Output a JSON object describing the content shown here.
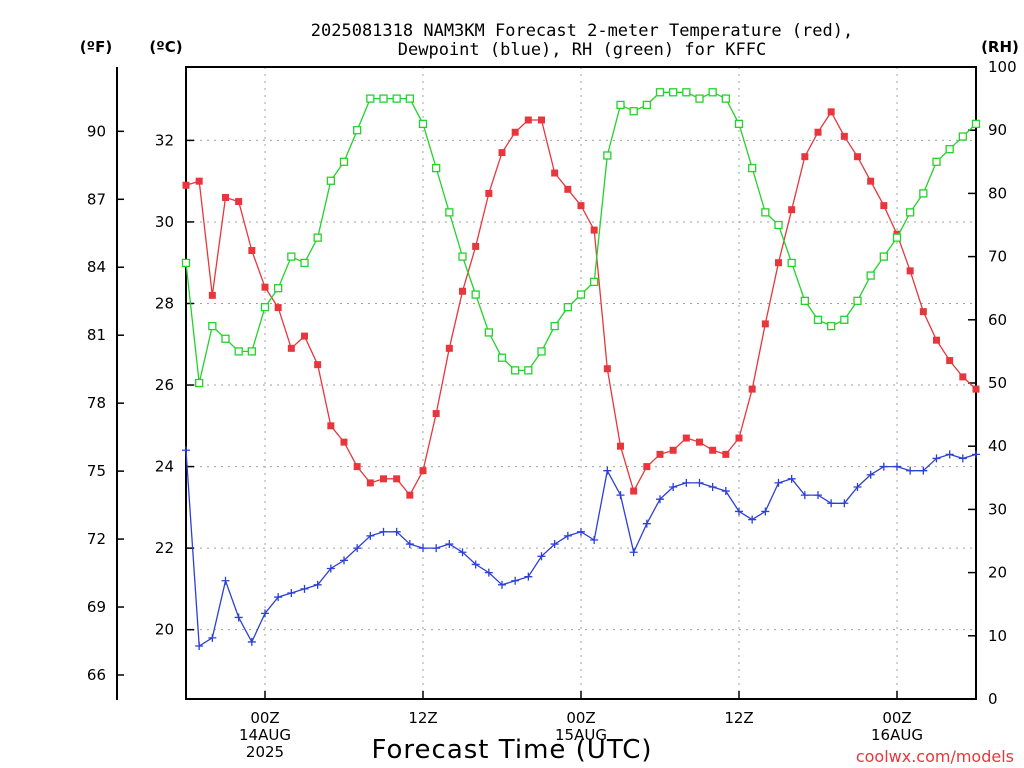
{
  "chart_data": {
    "type": "line",
    "title_line1": "2025081318 NAM3KM Forecast 2-meter Temperature (red),",
    "title_line2": "Dewpoint (blue), RH (green) for KFFC",
    "xlabel": "Forecast Time (UTC)",
    "credit": "coolwx.com/models",
    "units": {
      "fahrenheit": "(ºF)",
      "celsius": "(ºC)",
      "rh": "(RH)"
    },
    "colors": {
      "temperature": "#e8363c",
      "dewpoint": "#2c40d8",
      "rh": "#22d32a",
      "grid": "#a0a0a0"
    },
    "x": {
      "min": 0,
      "max": 60,
      "unit": "forecast hour from 2025-08-13 18Z"
    },
    "celsius_axis": {
      "min": 18.3,
      "max": 33.8,
      "ticks": [
        20,
        22,
        24,
        26,
        28,
        30,
        32
      ]
    },
    "fahrenheit_axis": {
      "ticks": [
        66,
        69,
        72,
        75,
        78,
        81,
        84,
        87,
        90
      ]
    },
    "rh_axis": {
      "min": 0,
      "max": 100,
      "ticks": [
        0,
        10,
        20,
        30,
        40,
        50,
        60,
        70,
        80,
        90,
        100
      ]
    },
    "x_ticks": [
      {
        "hour": 6,
        "line1": "00Z",
        "line2": "14AUG",
        "line3": "2025"
      },
      {
        "hour": 18,
        "line1": "12Z",
        "line2": "",
        "line3": ""
      },
      {
        "hour": 30,
        "line1": "00Z",
        "line2": "15AUG",
        "line3": ""
      },
      {
        "hour": 42,
        "line1": "12Z",
        "line2": "",
        "line3": ""
      },
      {
        "hour": 54,
        "line1": "00Z",
        "line2": "16AUG",
        "line3": ""
      }
    ],
    "series": [
      {
        "name": "Temperature",
        "axis": "celsius",
        "values": [
          30.9,
          31.0,
          28.2,
          30.6,
          30.5,
          29.3,
          28.4,
          27.9,
          26.9,
          27.2,
          26.5,
          25.0,
          24.6,
          24.0,
          23.6,
          23.7,
          23.7,
          23.3,
          23.9,
          25.3,
          26.9,
          28.3,
          29.4,
          30.7,
          31.7,
          32.2,
          32.5,
          32.5,
          31.2,
          30.8,
          30.4,
          29.8,
          26.4,
          24.5,
          23.4,
          24.0,
          24.3,
          24.4,
          24.7,
          24.6,
          24.4,
          24.3,
          24.7,
          25.9,
          27.5,
          29.0,
          30.3,
          31.6,
          32.2,
          32.7,
          32.1,
          31.6,
          31.0,
          30.4,
          29.7,
          28.8,
          27.8,
          27.1,
          26.6,
          26.2,
          25.9
        ]
      },
      {
        "name": "Dewpoint",
        "axis": "celsius",
        "values": [
          24.4,
          19.6,
          19.8,
          21.2,
          20.3,
          19.7,
          20.4,
          20.8,
          20.9,
          21.0,
          21.1,
          21.5,
          21.7,
          22.0,
          22.3,
          22.4,
          22.4,
          22.1,
          22.0,
          22.0,
          22.1,
          21.9,
          21.6,
          21.4,
          21.1,
          21.2,
          21.3,
          21.8,
          22.1,
          22.3,
          22.4,
          22.2,
          23.9,
          23.3,
          21.9,
          22.6,
          23.2,
          23.5,
          23.6,
          23.6,
          23.5,
          23.4,
          22.9,
          22.7,
          22.9,
          23.6,
          23.7,
          23.3,
          23.3,
          23.1,
          23.1,
          23.5,
          23.8,
          24.0,
          24.0,
          23.9,
          23.9,
          24.2,
          24.3,
          24.2,
          24.3
        ]
      },
      {
        "name": "RH",
        "axis": "rh",
        "values": [
          69,
          50,
          59,
          57,
          55,
          55,
          62,
          65,
          70,
          69,
          73,
          82,
          85,
          90,
          95,
          95,
          95,
          95,
          91,
          84,
          77,
          70,
          64,
          58,
          54,
          52,
          52,
          55,
          59,
          62,
          64,
          66,
          86,
          94,
          93,
          94,
          96,
          96,
          96,
          95,
          96,
          95,
          91,
          84,
          77,
          75,
          69,
          63,
          60,
          59,
          60,
          63,
          67,
          70,
          73,
          77,
          80,
          85,
          87,
          89,
          91
        ]
      }
    ]
  }
}
